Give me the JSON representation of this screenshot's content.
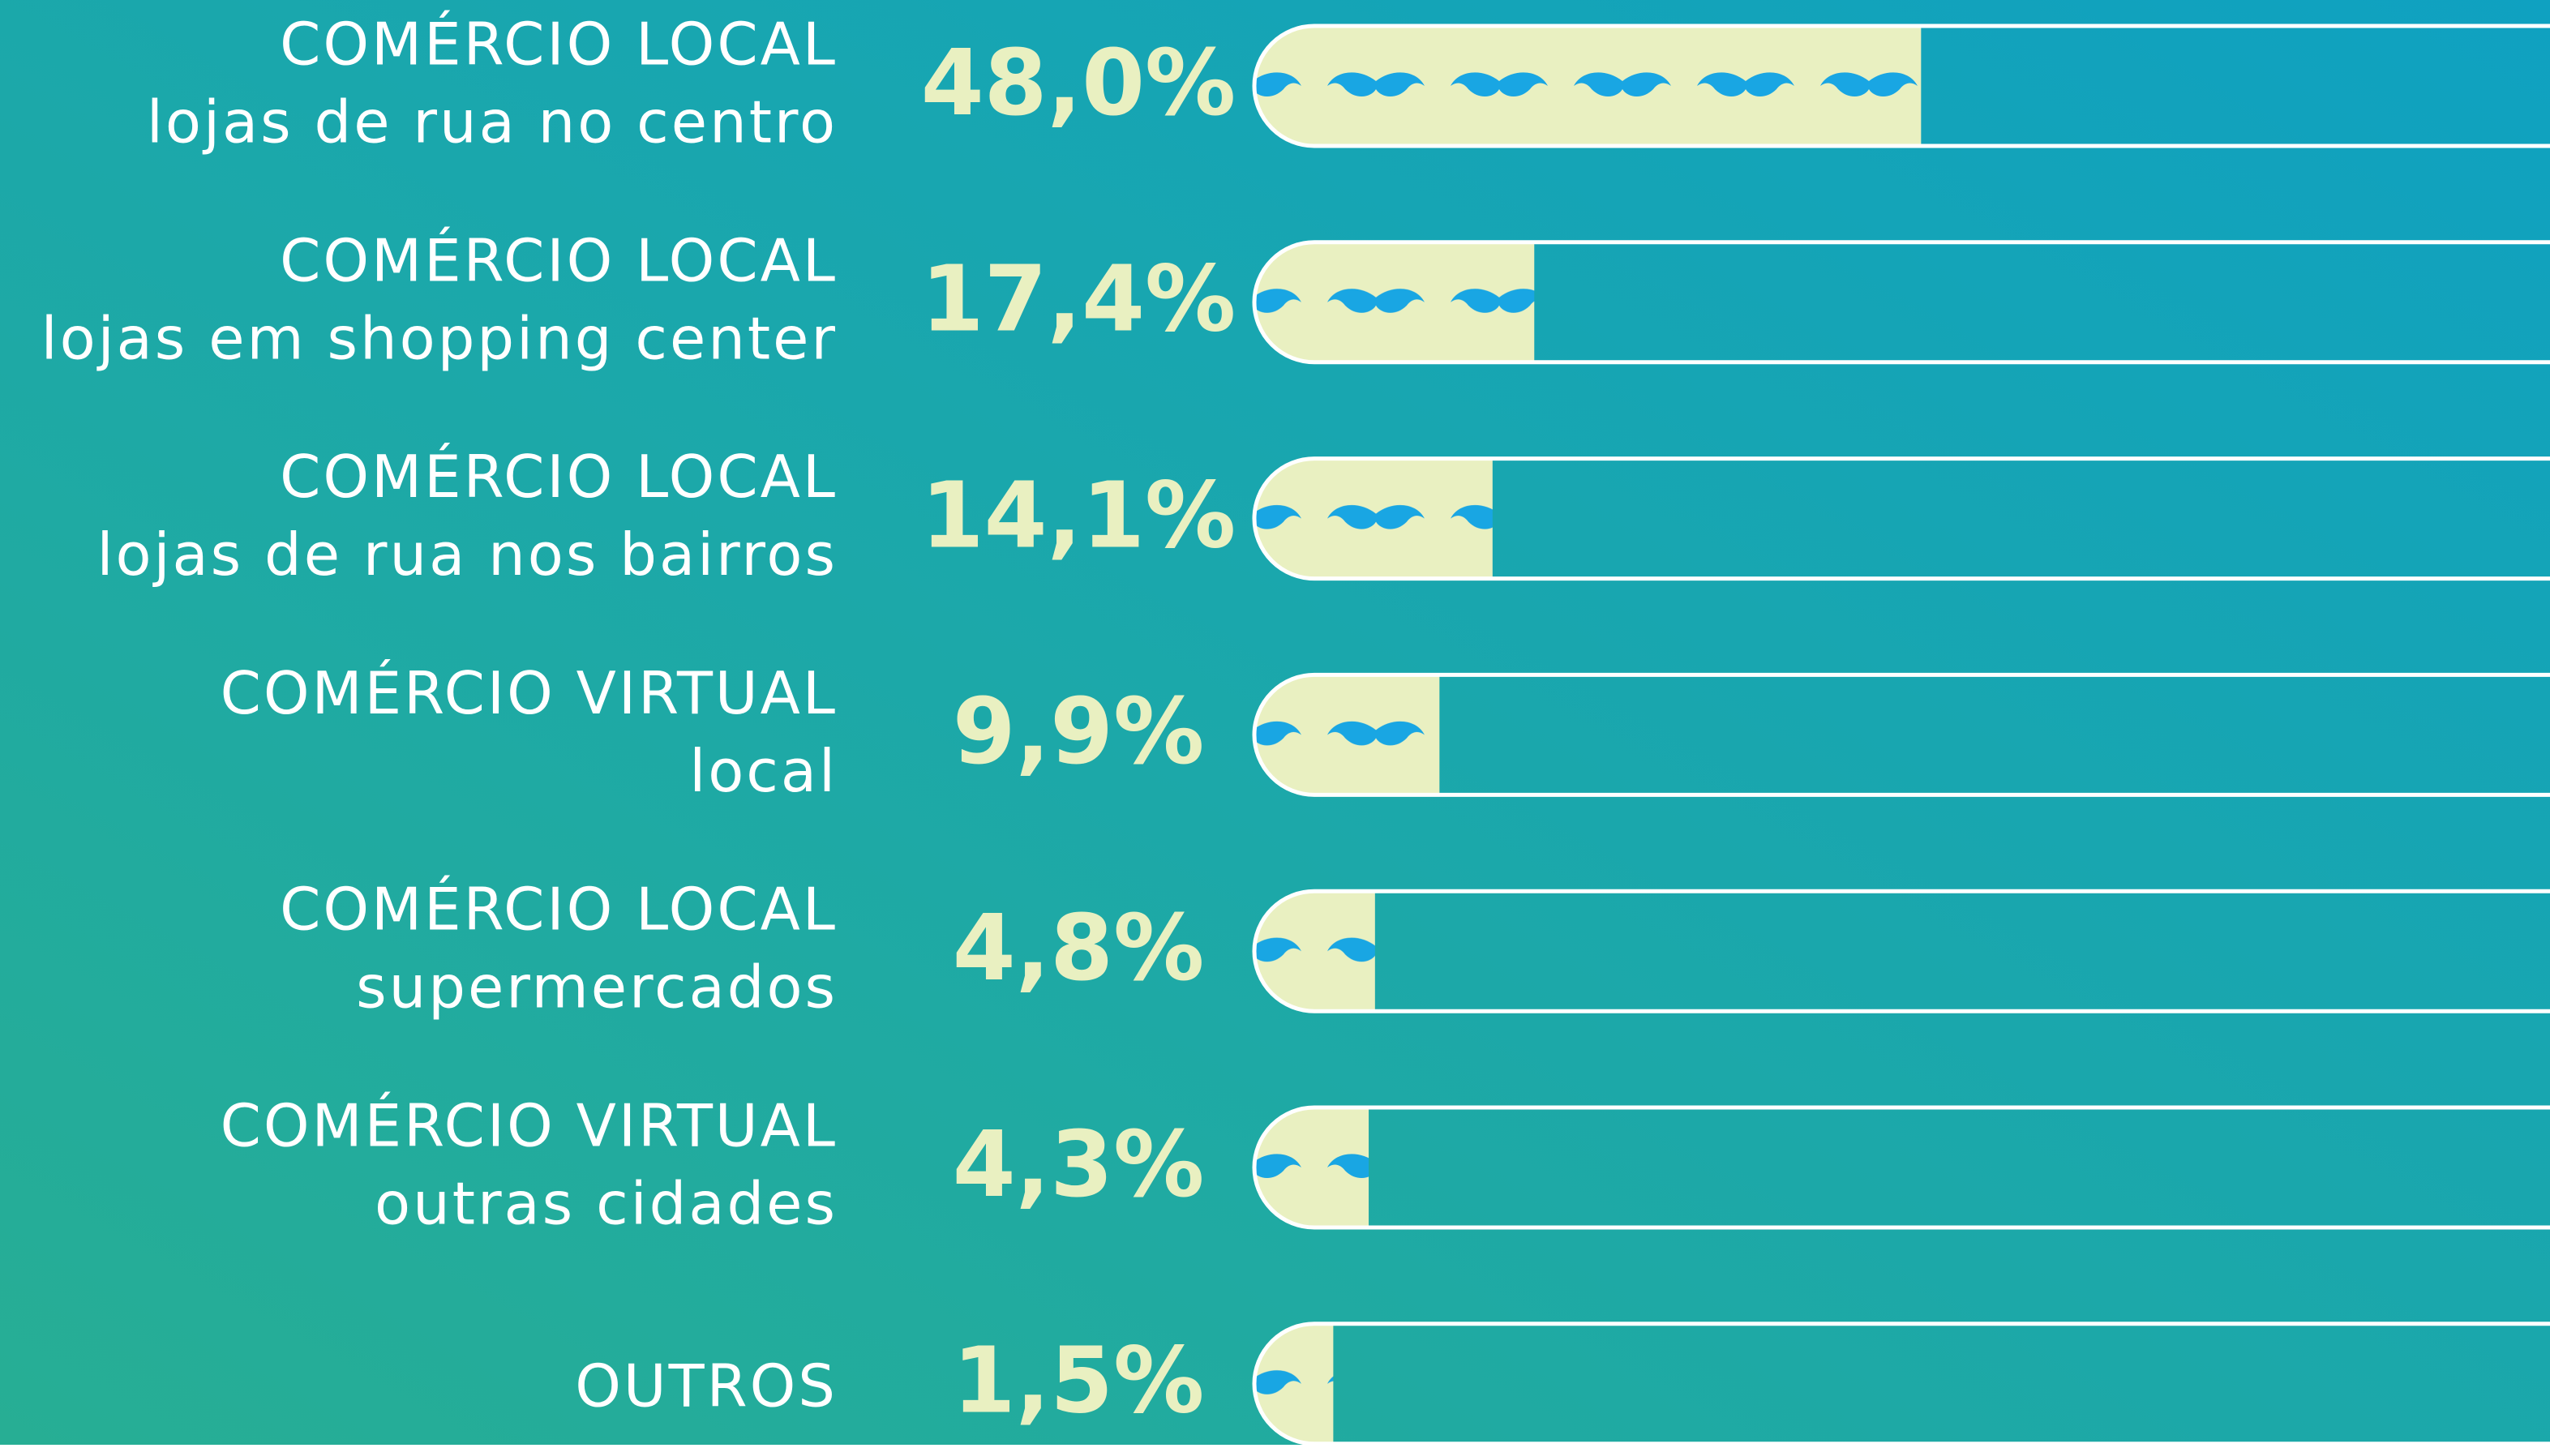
{
  "chart_data": {
    "type": "bar",
    "orientation": "horizontal",
    "categories": [
      [
        "COMÉRCIO LOCAL",
        "lojas de rua no centro"
      ],
      [
        "COMÉRCIO LOCAL",
        "lojas em shopping center"
      ],
      [
        "COMÉRCIO LOCAL",
        "lojas de rua nos bairros"
      ],
      [
        "COMÉRCIO VIRTUAL",
        "local"
      ],
      [
        "COMÉRCIO LOCAL",
        "supermercados"
      ],
      [
        "COMÉRCIO VIRTUAL",
        "outras cidades"
      ],
      [
        "OUTROS"
      ]
    ],
    "values": [
      48.0,
      17.4,
      14.1,
      9.9,
      4.8,
      4.3,
      1.5
    ],
    "value_labels": [
      "48,0%",
      "17,4%",
      "14,1%",
      "9,9%",
      "4,8%",
      "4,3%",
      "1,5%"
    ],
    "color": "#e9f0c1",
    "icon_color": "#19a6e3",
    "xlim": [
      0,
      100
    ]
  }
}
